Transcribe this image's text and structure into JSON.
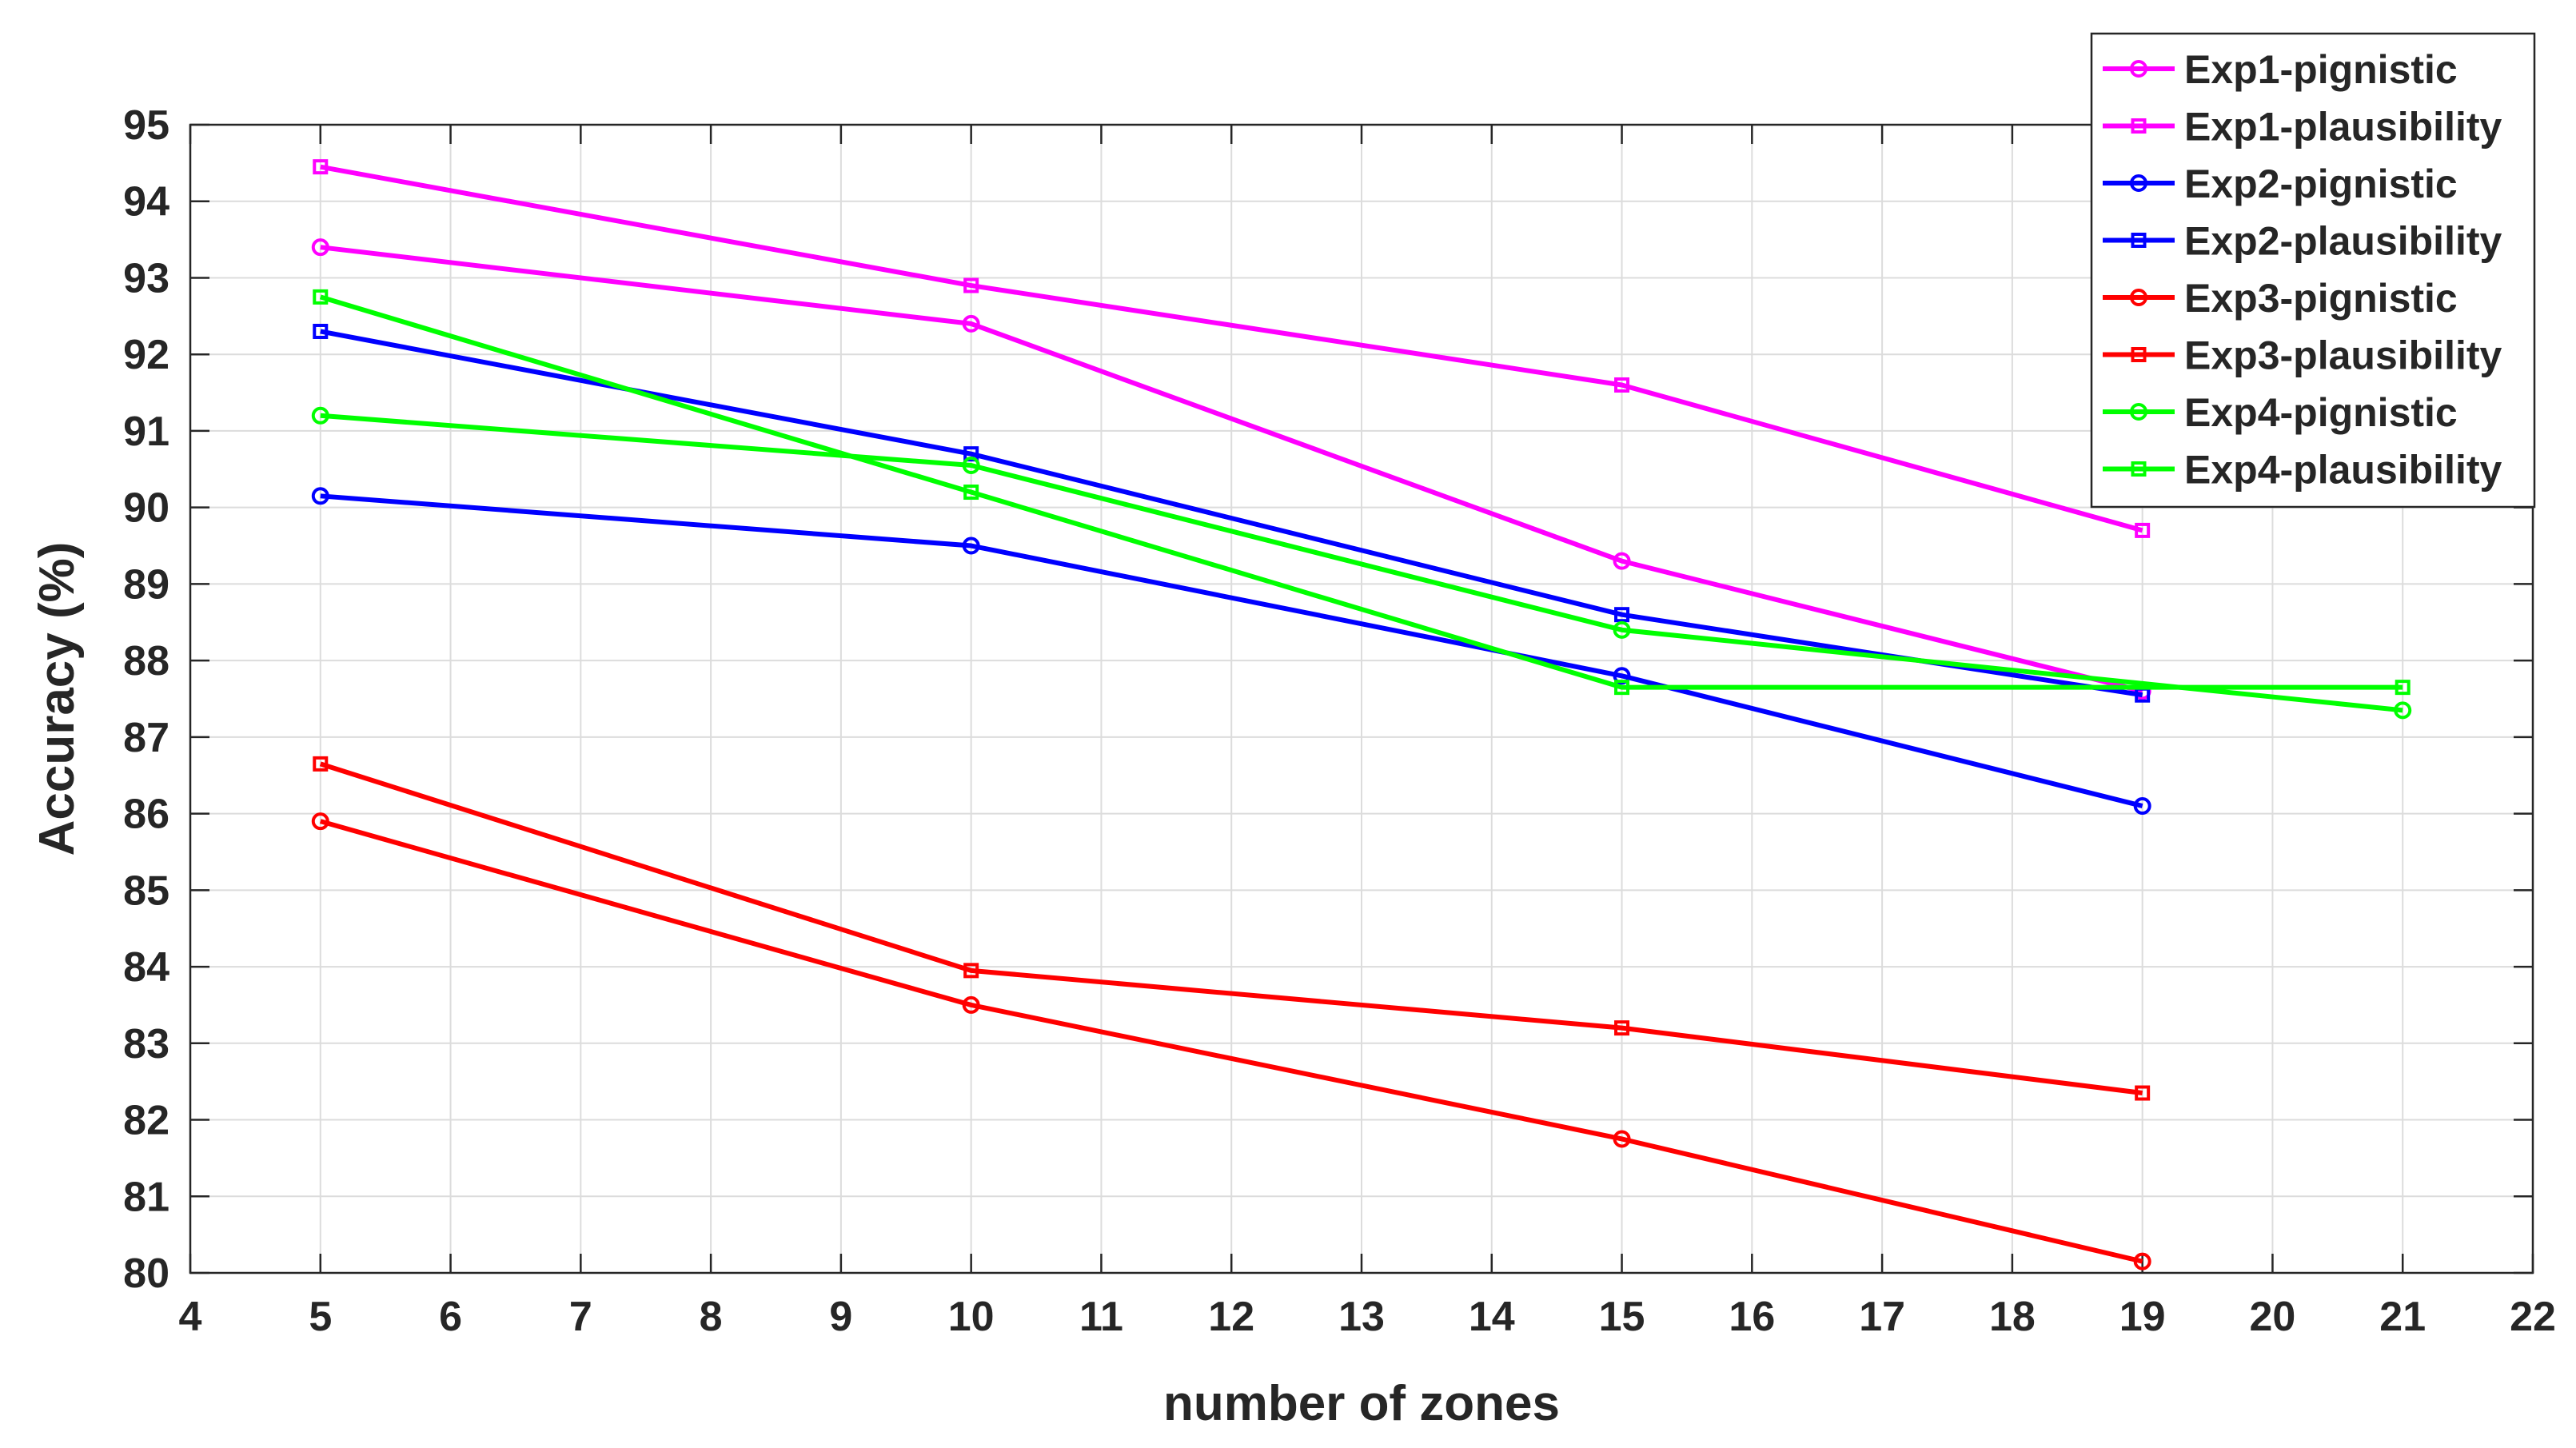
{
  "chart_data": {
    "type": "line",
    "title": "",
    "xlabel": "number of zones",
    "ylabel": "Accuracy (%)",
    "xlim": [
      4,
      22
    ],
    "ylim": [
      80,
      95
    ],
    "xticks": [
      4,
      5,
      6,
      7,
      8,
      9,
      10,
      11,
      12,
      13,
      14,
      15,
      16,
      17,
      18,
      19,
      20,
      21,
      22
    ],
    "yticks": [
      80,
      81,
      82,
      83,
      84,
      85,
      86,
      87,
      88,
      89,
      90,
      91,
      92,
      93,
      94,
      95
    ],
    "grid": true,
    "legend_position": "top-right",
    "series": [
      {
        "name": "Exp1-pignistic",
        "color": "#ff00ff",
        "marker": "circle",
        "x": [
          5,
          10,
          15,
          19
        ],
        "y": [
          93.4,
          92.4,
          89.3,
          87.6
        ]
      },
      {
        "name": "Exp1-plausibility",
        "color": "#ff00ff",
        "marker": "square",
        "x": [
          5,
          10,
          15,
          19
        ],
        "y": [
          94.45,
          92.9,
          91.6,
          89.7
        ]
      },
      {
        "name": "Exp2-pignistic",
        "color": "#0000ff",
        "marker": "circle",
        "x": [
          5,
          10,
          15,
          19
        ],
        "y": [
          90.15,
          89.5,
          87.8,
          86.1
        ]
      },
      {
        "name": "Exp2-plausibility",
        "color": "#0000ff",
        "marker": "square",
        "x": [
          5,
          10,
          15,
          19
        ],
        "y": [
          92.3,
          90.7,
          88.6,
          87.55
        ]
      },
      {
        "name": "Exp3-pignistic",
        "color": "#ff0000",
        "marker": "circle",
        "x": [
          5,
          10,
          15,
          19
        ],
        "y": [
          85.9,
          83.5,
          81.75,
          80.15
        ]
      },
      {
        "name": "Exp3-plausibility",
        "color": "#ff0000",
        "marker": "square",
        "x": [
          5,
          10,
          15,
          19
        ],
        "y": [
          86.65,
          83.95,
          83.2,
          82.35
        ]
      },
      {
        "name": "Exp4-pignistic",
        "color": "#00ff00",
        "marker": "circle",
        "x": [
          5,
          10,
          15,
          21
        ],
        "y": [
          91.2,
          90.55,
          88.4,
          87.35
        ]
      },
      {
        "name": "Exp4-plausibility",
        "color": "#00ff00",
        "marker": "square",
        "x": [
          5,
          10,
          15,
          21
        ],
        "y": [
          92.75,
          90.2,
          87.65,
          87.65
        ]
      }
    ]
  }
}
